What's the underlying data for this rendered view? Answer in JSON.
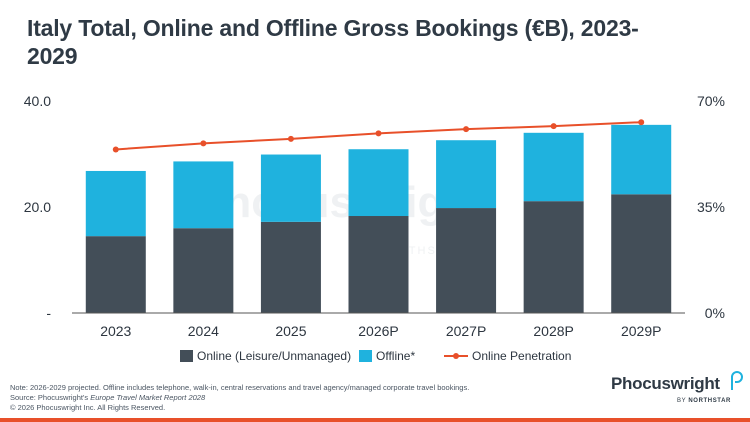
{
  "title": "Italy Total, Online and Offline Gross Bookings (€B), 2023-2029",
  "colors": {
    "online": "#434e58",
    "offline": "#1fb2de",
    "penetration": "#e8502a",
    "axis": "#555555",
    "bottom_bar": "#e8502a"
  },
  "chart_data": {
    "type": "bar",
    "stacked": true,
    "categories": [
      "2023",
      "2024",
      "2025",
      "2026P",
      "2027P",
      "2028P",
      "2029P"
    ],
    "series": [
      {
        "name": "Online (Leisure/Unmanaged)",
        "values": [
          14.5,
          16.0,
          17.2,
          18.3,
          19.8,
          21.1,
          22.4
        ]
      },
      {
        "name": "Offline*",
        "values": [
          12.3,
          12.6,
          12.7,
          12.6,
          12.8,
          12.9,
          13.1
        ]
      }
    ],
    "line_series": {
      "name": "Online Penetration",
      "axis": "right",
      "values": [
        0.54,
        0.56,
        0.575,
        0.593,
        0.607,
        0.617,
        0.63
      ]
    },
    "y_left": {
      "ylim": [
        0,
        40
      ],
      "ticks": [
        0,
        20,
        40
      ],
      "tick_labels": [
        "-",
        "20.0",
        "40.0"
      ]
    },
    "y_right": {
      "ylim": [
        0,
        0.7
      ],
      "ticks": [
        0,
        0.35,
        0.7
      ],
      "tick_labels": [
        "0%",
        "35%",
        "70%"
      ]
    },
    "grid": false,
    "legend_position": "bottom"
  },
  "notes": {
    "line1": "Note: 2026-2029 projected. Offline includes telephone, walk-in, central reservations and travel agency/managed corporate travel bookings.",
    "source_prefix": "Source: Phocuswright's ",
    "source_title": "Europe Travel Market Report 2028",
    "copyright": "© 2026 Phocuswright Inc. All Rights Reserved."
  },
  "watermark": {
    "word": "Phocuswright",
    "sub": "BY NORTHSTAR"
  },
  "logo": {
    "word": "Phocuswright",
    "by": "BY ",
    "company": "NORTHSTAR"
  }
}
